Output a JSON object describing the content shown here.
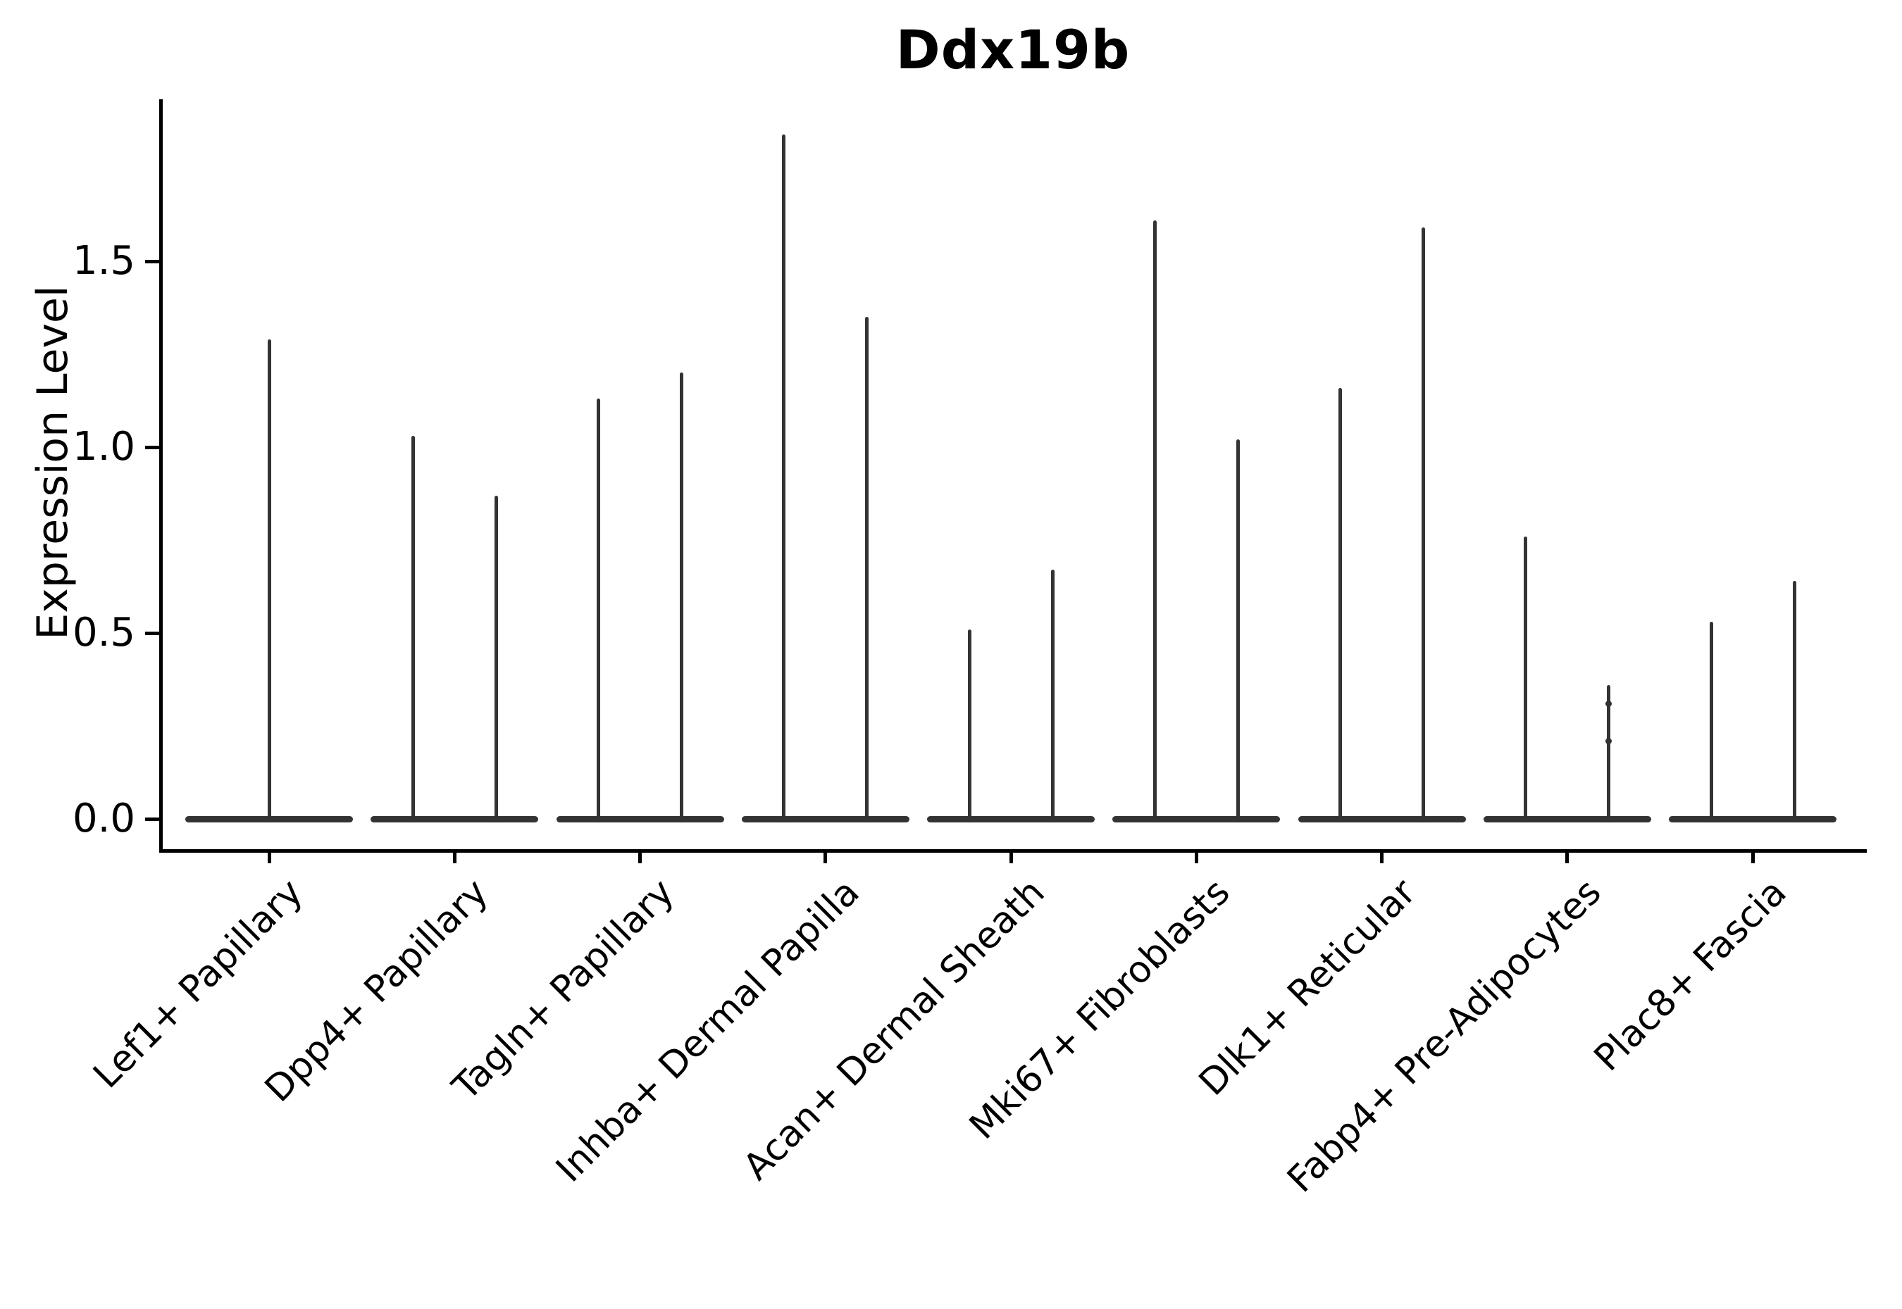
{
  "title": "Ddx19b",
  "y_axis": {
    "label": "Expression Level",
    "tick_labels": [
      "0.0",
      "0.5",
      "1.0",
      "1.5"
    ]
  },
  "x_axis": {
    "tick_labels": [
      "Lef1+ Papillary",
      "Dpp4+ Papillary",
      "Tagln+ Papillary",
      "Inhba+ Dermal Papilla",
      "Acan+ Dermal Sheath",
      "Mki67+ Fibroblasts",
      "Dlk1+ Reticular",
      "Fabp4+ Pre-Adipocytes",
      "Plac8+ Fascia"
    ]
  },
  "chart_data": {
    "type": "violin",
    "title": "Ddx19b",
    "xlabel": "",
    "ylabel": "Expression Level",
    "ylim": [
      0,
      1.93
    ],
    "yticks": [
      0,
      0.5,
      1.0,
      1.5
    ],
    "ytick_labels": [
      "0.0",
      "0.5",
      "1.0",
      "1.5"
    ],
    "grid": false,
    "legend": null,
    "line_color": "#333333",
    "spine_color": "#000000",
    "background_color": "#ffffff",
    "x_label_rotation_deg": 45,
    "categories": [
      "Lef1+ Papillary",
      "Dpp4+ Papillary",
      "Tagln+ Papillary",
      "Inhba+ Dermal Papilla",
      "Acan+ Dermal Sheath",
      "Mki67+ Fibroblasts",
      "Dlk1+ Reticular",
      "Fabp4+ Pre-Adipocytes",
      "Plac8+ Fascia"
    ],
    "description": "Needle-thin violin plot: expression mass concentrated at 0 (flat base bar per category); each violin reduces to a vertical spike whose top is the maximum expression value. First category has a single full-width violin; all others have two violins.",
    "violins": [
      {
        "category": "Lef1+ Papillary",
        "max_values": [
          1.29
        ]
      },
      {
        "category": "Dpp4+ Papillary",
        "max_values": [
          1.03,
          0.87
        ]
      },
      {
        "category": "Tagln+ Papillary",
        "max_values": [
          1.13,
          1.2
        ]
      },
      {
        "category": "Inhba+ Dermal Papilla",
        "max_values": [
          1.84,
          1.35
        ]
      },
      {
        "category": "Acan+ Dermal Sheath",
        "max_values": [
          0.51,
          0.67
        ]
      },
      {
        "category": "Mki67+ Fibroblasts",
        "max_values": [
          1.61,
          1.02
        ]
      },
      {
        "category": "Dlk1+ Reticular",
        "max_values": [
          1.16,
          1.59
        ]
      },
      {
        "category": "Fabp4+ Pre-Adipocytes",
        "max_values": [
          0.76,
          0.36
        ]
      },
      {
        "category": "Plac8+ Fascia",
        "max_values": [
          0.53,
          0.64
        ]
      }
    ],
    "markers": [
      {
        "category": "Fabp4+ Pre-Adipocytes",
        "violin_index": 1,
        "values": [
          0.31,
          0.21
        ]
      }
    ]
  }
}
